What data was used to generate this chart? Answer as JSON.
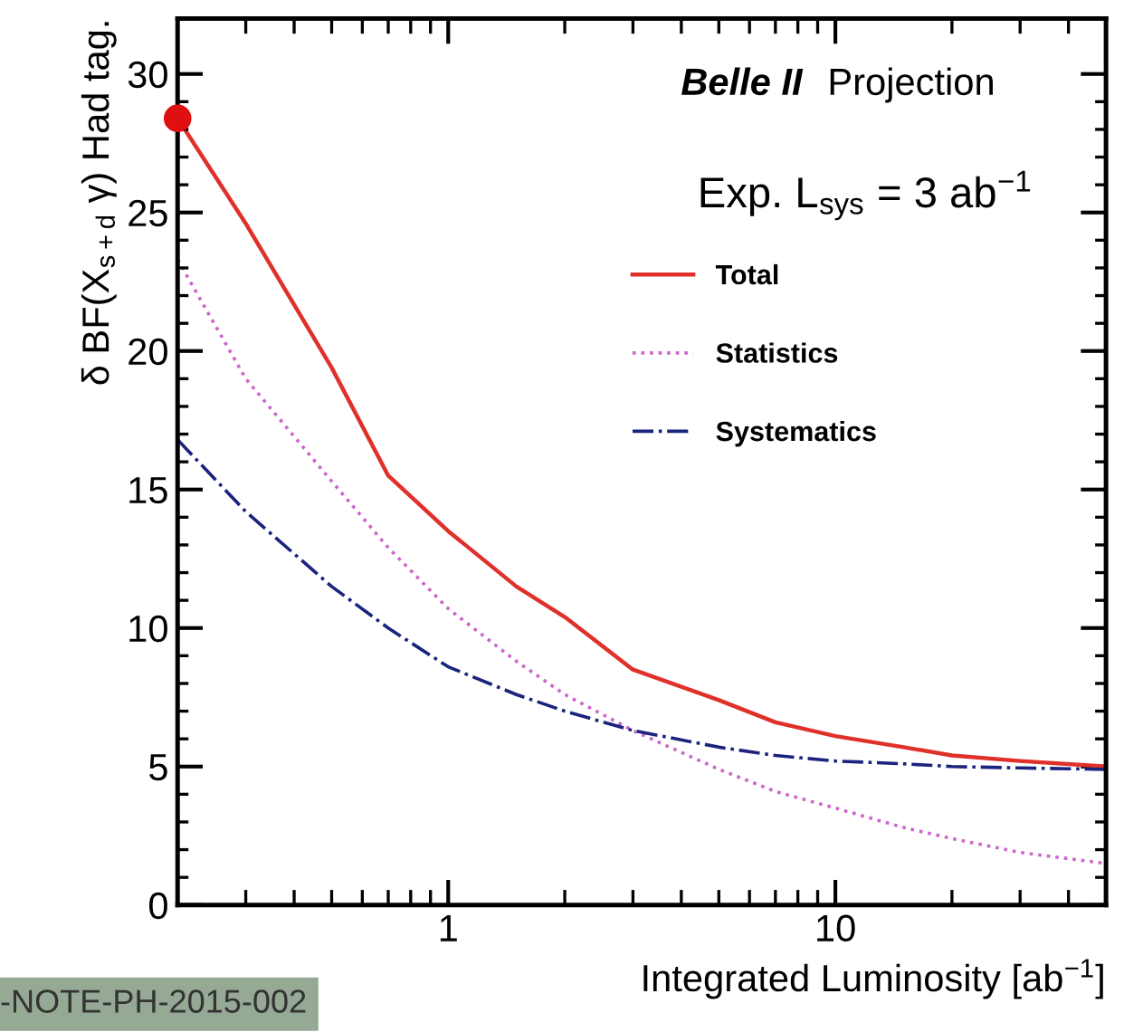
{
  "chart_data": {
    "type": "line",
    "xlabel": "Integrated Luminosity [ab$^{−1}$]",
    "ylabel": "δ BF(X$_{s+d}$ γ) Had tag.",
    "log": "x",
    "xlim": [
      0.2,
      50
    ],
    "xticks": [
      1,
      10
    ],
    "ylim": [
      0,
      32
    ],
    "yticks": [
      0,
      5,
      10,
      15,
      20,
      25,
      30
    ],
    "grid": false,
    "legend": "right",
    "x": [
      0.2,
      0.3,
      0.5,
      0.7,
      1,
      1.5,
      2,
      3,
      5,
      7,
      10,
      15,
      20,
      30,
      50
    ],
    "series": [
      {
        "name": "Total",
        "color": "#e0302a",
        "line_style": "solid",
        "values": [
          28.4,
          24.6,
          19.4,
          15.5,
          13.5,
          11.5,
          10.4,
          8.5,
          7.4,
          6.6,
          6.1,
          5.7,
          5.4,
          5.2,
          5.0
        ]
      },
      {
        "name": "Statistics",
        "color": "#cc66cc",
        "line_style": "dotted",
        "values": [
          23.3,
          19.0,
          15.3,
          12.9,
          10.7,
          8.8,
          7.6,
          6.3,
          4.9,
          4.1,
          3.5,
          2.8,
          2.4,
          1.9,
          1.5
        ]
      },
      {
        "name": "Systematics",
        "color": "#1a237e",
        "line_style": "dashdot",
        "values": [
          16.8,
          14.2,
          11.5,
          10.0,
          8.6,
          7.6,
          7.0,
          6.3,
          5.7,
          5.4,
          5.2,
          5.1,
          5.0,
          4.95,
          4.9
        ]
      },
      {
        "type": "scatter",
        "marker": "circle",
        "color": "#e01010",
        "x": [
          0.2
        ],
        "values": [
          28.4
        ]
      }
    ],
    "annotations": [
      "Belle II",
      "Projection",
      "Exp. L$_{sys}$ = 3 ab$^{−1}$",
      "-NOTE-PH-2015-002"
    ]
  }
}
